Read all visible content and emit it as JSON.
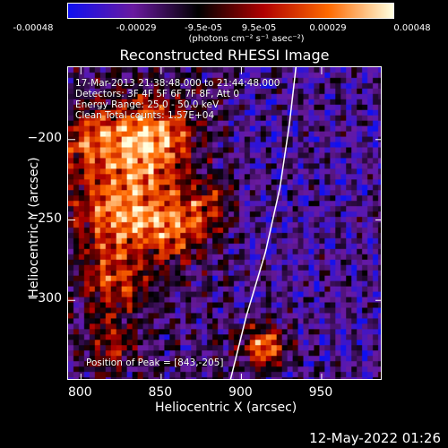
{
  "colorbar": {
    "ticks": [
      "-0.00048",
      "-0.00029",
      "-9.5e-05",
      "9.5e-05",
      "0.00029",
      "0.00048"
    ],
    "units": "(photons cm⁻² s⁻¹ asec⁻²)",
    "colors": [
      "#1010f0",
      "#6a1aa0",
      "#000000",
      "#b00000",
      "#ff6a00",
      "#ffffe0"
    ]
  },
  "annotations": {
    "time_range": "17-Mar-2013 21:38:48.000 to 21:44:48.000",
    "detectors": "Detectors: 3F 4F 5F 6F 7F 8F, Att 0",
    "energy": "Energy Range: 25.0 - 50.0 keV",
    "clean": "Clean    Total counts: 1.57E+04",
    "peak": "Position of Peak = [843,-205]"
  },
  "footer": {
    "date": "12-May-2022 01:26"
  },
  "chart_data": {
    "type": "heatmap",
    "title": "Reconstructed RHESSI Image",
    "xlabel": "Heliocentric X (arcsec)",
    "ylabel": "Heliocentric Y (arcsec)",
    "xlim": [
      792,
      988
    ],
    "ylim": [
      -350,
      -155
    ],
    "xticks": [
      800,
      850,
      900,
      950
    ],
    "yticks": [
      -200,
      -250,
      -300
    ],
    "zlim": [
      -0.00048,
      0.00048
    ],
    "peak": [
      843,
      -205
    ],
    "limb": [
      [
        934,
        -155
      ],
      [
        930,
        -190
      ],
      [
        924,
        -230
      ],
      [
        915,
        -270
      ],
      [
        903,
        -310
      ],
      [
        893,
        -350
      ]
    ],
    "sources": [
      {
        "x": 843,
        "y": -200,
        "amp": 0.00048,
        "sigma": 18
      },
      {
        "x": 825,
        "y": -245,
        "amp": 0.0004,
        "sigma": 20
      },
      {
        "x": 805,
        "y": -200,
        "amp": 0.0003,
        "sigma": 14
      },
      {
        "x": 860,
        "y": -255,
        "amp": 0.0003,
        "sigma": 15
      },
      {
        "x": 820,
        "y": -290,
        "amp": 0.00028,
        "sigma": 14
      },
      {
        "x": 880,
        "y": -240,
        "amp": 0.00018,
        "sigma": 10
      },
      {
        "x": 820,
        "y": -330,
        "amp": 0.0002,
        "sigma": 12
      },
      {
        "x": 915,
        "y": -330,
        "amp": 0.00042,
        "sigma": 10
      }
    ]
  }
}
